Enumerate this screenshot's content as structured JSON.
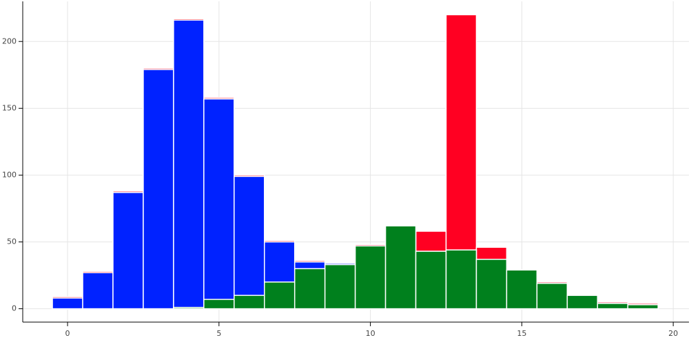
{
  "chart_data": {
    "type": "histogram",
    "bins": [
      -0.5,
      0.5,
      1.5,
      2.5,
      3.5,
      4.5,
      5.5,
      6.5,
      7.5,
      8.5,
      9.5,
      10.5,
      11.5,
      12.5,
      13.5,
      14.5,
      15.5,
      16.5,
      17.5,
      18.5,
      19.5
    ],
    "series": [
      {
        "color": "#ff0022",
        "values": [
          9,
          28,
          88,
          180,
          217,
          158,
          100,
          51,
          36,
          34,
          48,
          62,
          58,
          220,
          46,
          29,
          20,
          10,
          5,
          4
        ]
      },
      {
        "color": "#0022ff",
        "values": [
          8,
          27,
          87,
          179,
          216,
          157,
          99,
          50,
          35,
          34,
          47,
          62,
          43,
          44,
          37,
          28,
          19,
          9,
          4,
          3
        ]
      },
      {
        "color": "#00801d",
        "values": [
          0,
          0,
          0,
          0,
          1,
          7,
          10,
          20,
          30,
          33,
          47,
          62,
          43,
          44,
          37,
          29,
          19,
          10,
          4,
          3
        ]
      }
    ],
    "xlim": [
      -1.48,
      20.52
    ],
    "ylim": [
      -10,
      230
    ],
    "xticks": [
      0,
      5,
      10,
      15,
      20
    ],
    "yticks": [
      0,
      50,
      100,
      150,
      200
    ],
    "grid": true
  }
}
